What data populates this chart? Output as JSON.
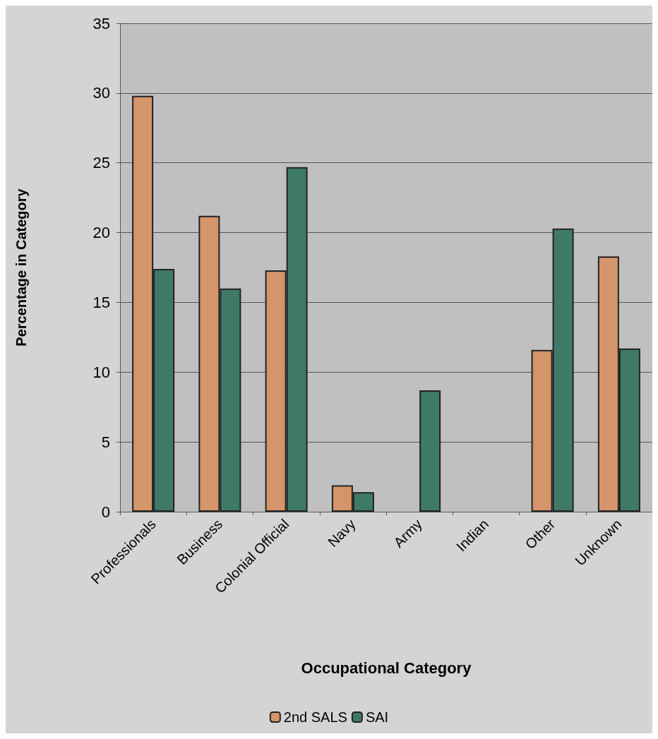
{
  "chart_data": {
    "type": "bar",
    "xlabel": "Occupational Category",
    "ylabel": "Percentage in Category",
    "categories": [
      "Professionals",
      "Business",
      "Colonial Official",
      "Navy",
      "Army",
      "Indian",
      "Other",
      "Unknown"
    ],
    "series": [
      {
        "name": "2nd SALS",
        "color": "#d4956a",
        "values": [
          29.8,
          21.2,
          17.3,
          1.9,
          0,
          0,
          11.6,
          18.3
        ]
      },
      {
        "name": "SAI",
        "color": "#3f7a68",
        "values": [
          17.4,
          16.0,
          24.7,
          1.4,
          8.7,
          0,
          20.3,
          11.7
        ]
      }
    ],
    "ylim": [
      0,
      35
    ],
    "yticks": [
      0,
      5,
      10,
      15,
      20,
      25,
      30,
      35
    ],
    "grid": "y",
    "legend": "bottom"
  }
}
